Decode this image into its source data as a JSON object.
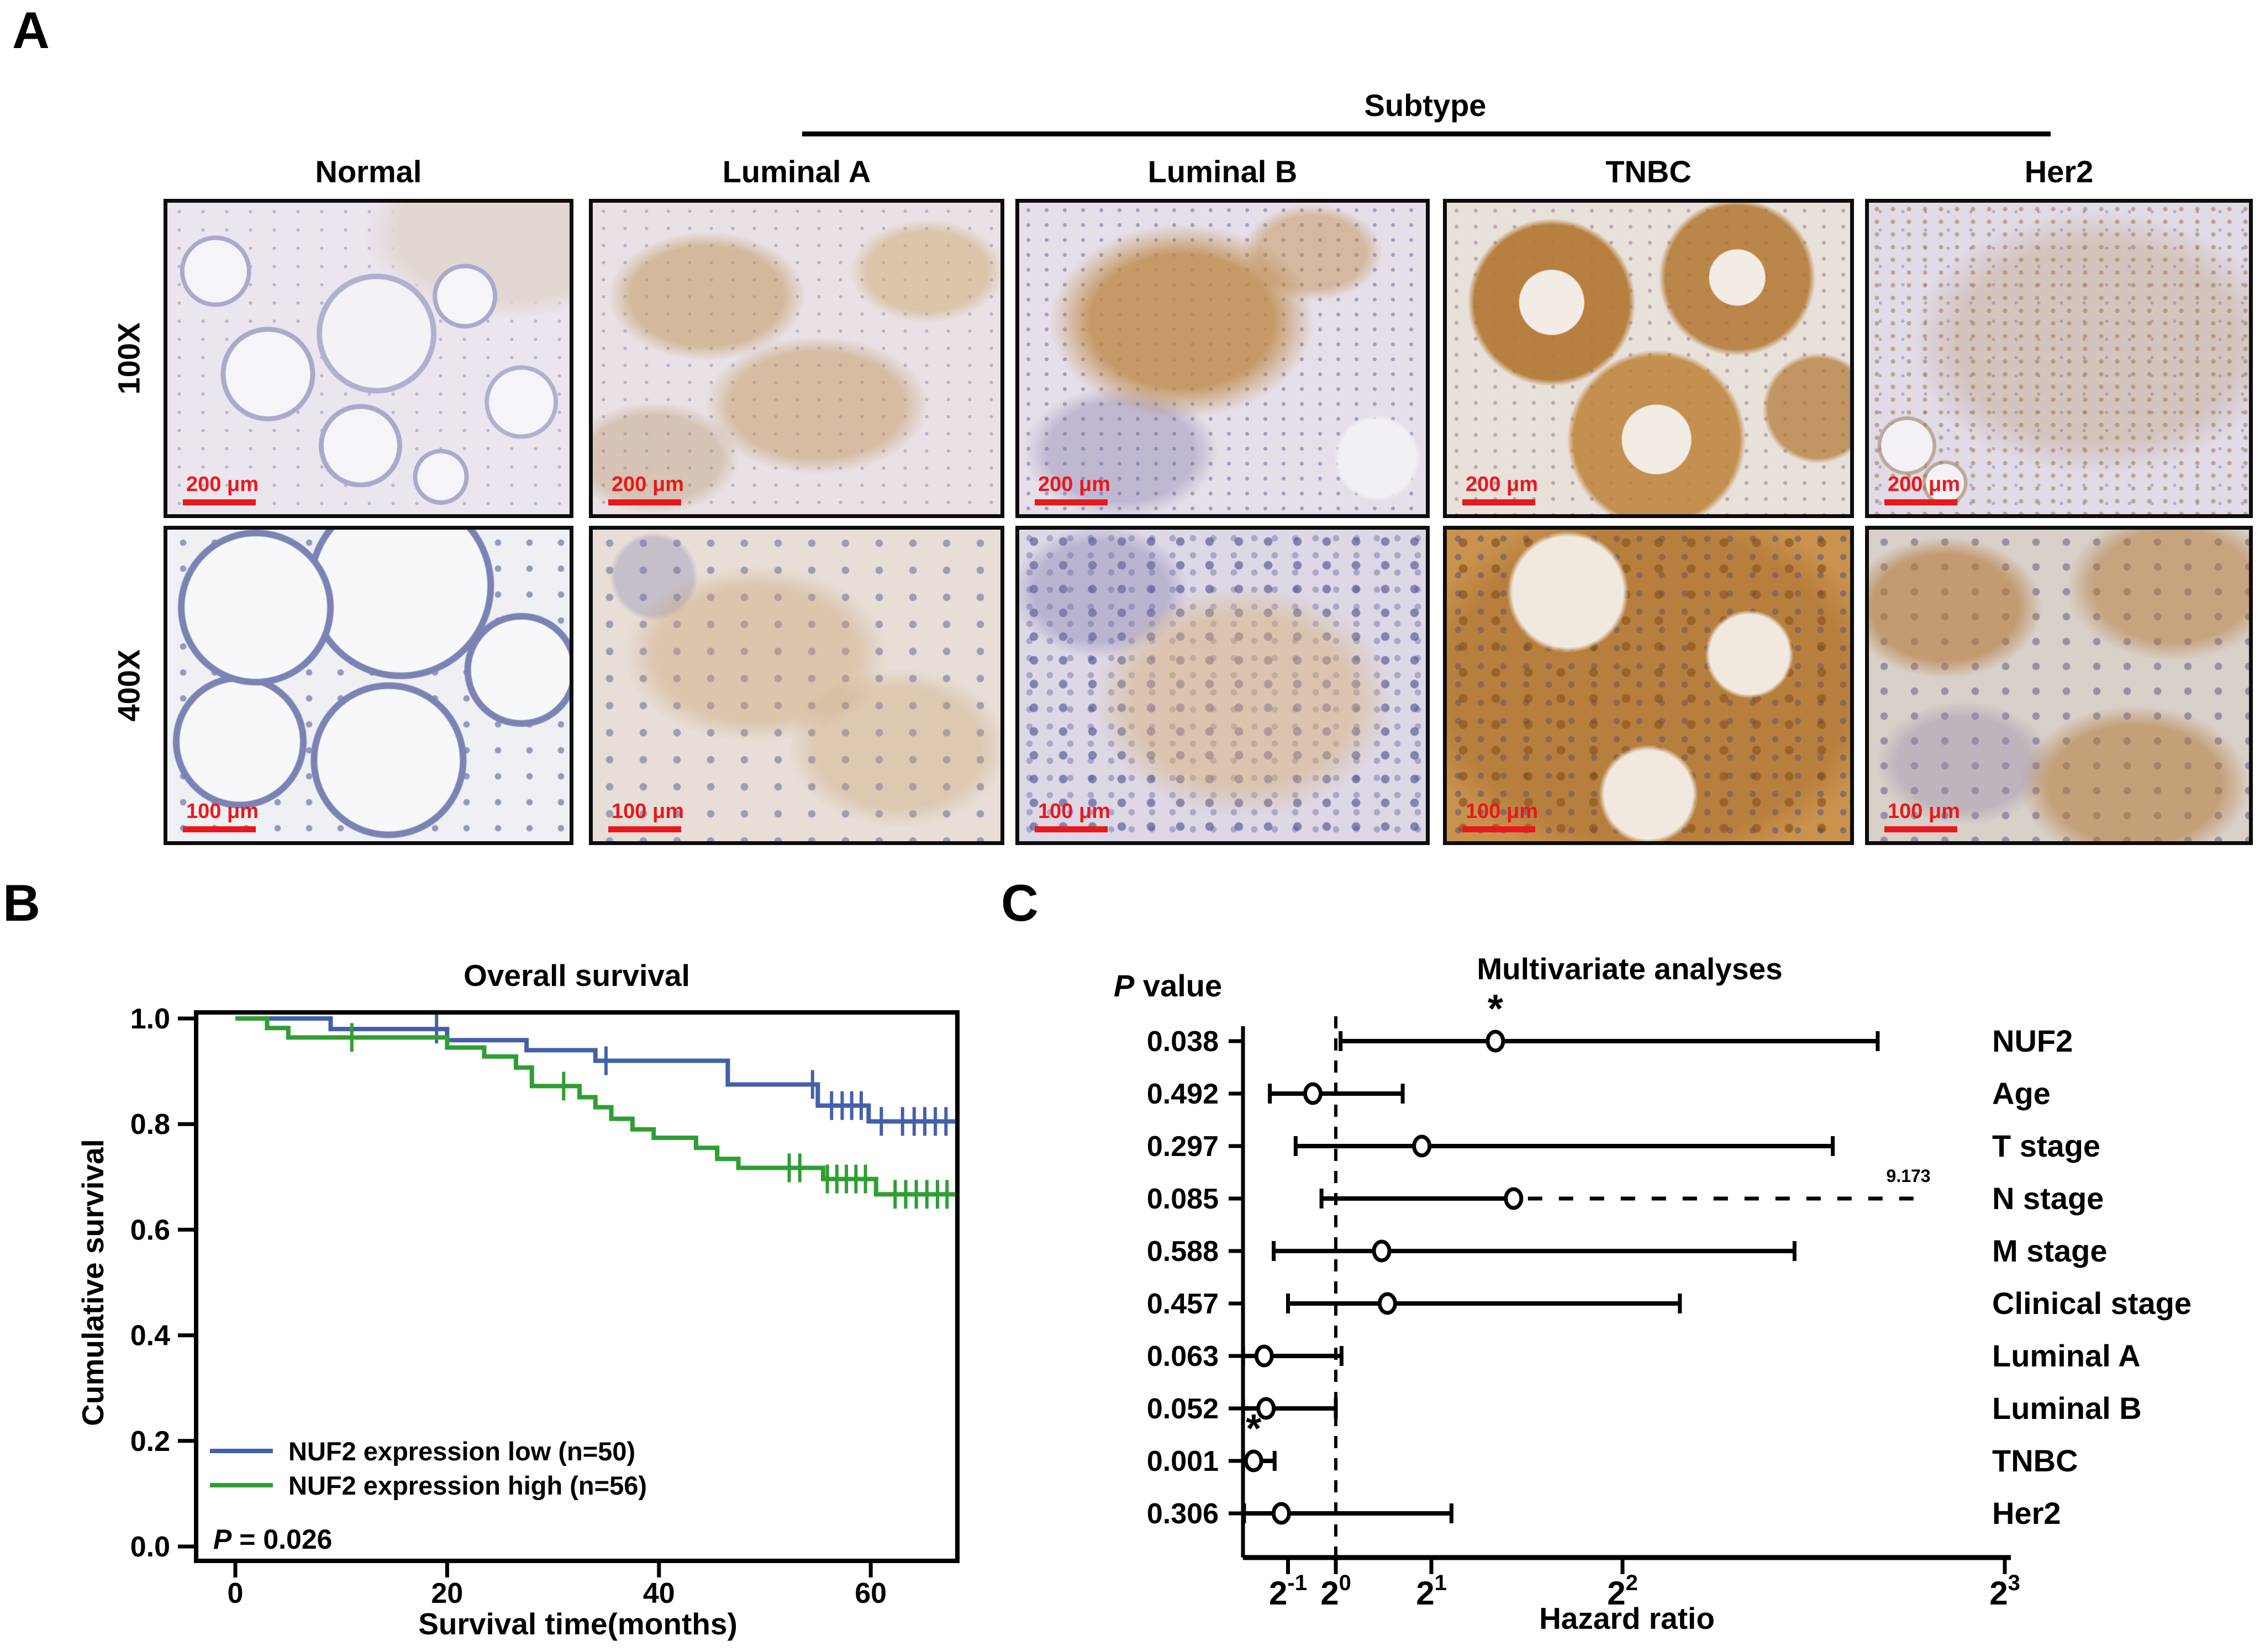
{
  "colors": {
    "km_low_blue": "#4560aa",
    "km_high_green": "#2f9e33",
    "scalebar_red": "#e8191c",
    "ink": "#000000"
  },
  "panelA": {
    "label": "A",
    "subtype_header": "Subtype",
    "columns": [
      "Normal",
      "Luminal A",
      "Luminal B",
      "TNBC",
      "Her2"
    ],
    "rows": [
      "100X",
      "400X"
    ],
    "scalebar_row1": "200 μm",
    "scalebar_row2": "100 μm"
  },
  "panelB": {
    "label": "B",
    "title": "Overall survival",
    "xlabel": "Survival time(months)",
    "ylabel": "Cumulative survival",
    "p_italic": "P",
    "p_rest": " = 0.026"
  },
  "panelC": {
    "label": "C",
    "title": "Multivariate analyses",
    "pvalue_italic": "P",
    "pvalue_rest": " value",
    "xlabel": "Hazard ratio"
  },
  "chart_data": [
    {
      "type": "line",
      "subtype": "kaplan-meier-step",
      "title": "Overall survival",
      "xlabel": "Survival time(months)",
      "ylabel": "Cumulative survival",
      "xlim": [
        -4,
        68.2
      ],
      "ylim": [
        0.0,
        1.04
      ],
      "xticks": [
        0,
        20,
        40,
        60
      ],
      "yticks": [
        0.0,
        0.2,
        0.4,
        0.6,
        0.8,
        1.0
      ],
      "grid": false,
      "legend_position": "lower-left inside plot",
      "p_value": "0.026",
      "series": [
        {
          "name": "NUF2 expression low (n=50)",
          "color": "#4560aa",
          "steps": [
            [
              0,
              1.0
            ],
            [
              9,
              0.98
            ],
            [
              20,
              0.959
            ],
            [
              27.5,
              0.94
            ],
            [
              34,
              0.92
            ],
            [
              46.5,
              0.875
            ],
            [
              55,
              0.835
            ],
            [
              59.8,
              0.805
            ],
            [
              68,
              0.805
            ]
          ],
          "censors": [
            [
              19,
              0.98
            ],
            [
              35,
              0.92
            ],
            [
              54.5,
              0.875
            ],
            [
              56.3,
              0.835
            ],
            [
              57.3,
              0.835
            ],
            [
              58.2,
              0.835
            ],
            [
              59.1,
              0.835
            ],
            [
              61,
              0.805
            ],
            [
              63,
              0.805
            ],
            [
              64.1,
              0.805
            ],
            [
              65.1,
              0.805
            ],
            [
              66.1,
              0.805
            ],
            [
              67.1,
              0.805
            ]
          ]
        },
        {
          "name": "NUF2 expression high (n=56)",
          "color": "#2f9e33",
          "steps": [
            [
              0,
              1.0
            ],
            [
              3,
              0.982
            ],
            [
              5,
              0.964
            ],
            [
              20,
              0.945
            ],
            [
              23.5,
              0.928
            ],
            [
              26.5,
              0.907
            ],
            [
              28,
              0.872
            ],
            [
              32.5,
              0.851
            ],
            [
              34,
              0.832
            ],
            [
              35.5,
              0.81
            ],
            [
              37.5,
              0.79
            ],
            [
              39.5,
              0.774
            ],
            [
              43.5,
              0.755
            ],
            [
              45.5,
              0.734
            ],
            [
              47.5,
              0.717
            ],
            [
              55.5,
              0.696
            ],
            [
              60.5,
              0.667
            ],
            [
              68,
              0.667
            ]
          ],
          "censors": [
            [
              11,
              0.964
            ],
            [
              31,
              0.872
            ],
            [
              52.3,
              0.717
            ],
            [
              53.3,
              0.717
            ],
            [
              55.9,
              0.696
            ],
            [
              56.8,
              0.696
            ],
            [
              57.7,
              0.696
            ],
            [
              58.6,
              0.696
            ],
            [
              59.5,
              0.696
            ],
            [
              62.3,
              0.667
            ],
            [
              63.3,
              0.667
            ],
            [
              64.3,
              0.667
            ],
            [
              65.3,
              0.667
            ],
            [
              66.3,
              0.667
            ],
            [
              67.2,
              0.667
            ]
          ]
        }
      ]
    },
    {
      "type": "forest",
      "title": "Multivariate analyses",
      "xlabel": "Hazard ratio",
      "x_scale": "linear in hazard ratio, ticks labeled as powers of 2",
      "xlim": [
        0.03,
        8.2
      ],
      "reference_line": 1,
      "xticks": [
        {
          "value": 0.5,
          "base": "2",
          "exp": "-1"
        },
        {
          "value": 1,
          "base": "2",
          "exp": "0"
        },
        {
          "value": 2,
          "base": "2",
          "exp": "1"
        },
        {
          "value": 4,
          "base": "2",
          "exp": "2"
        },
        {
          "value": 8,
          "base": "2",
          "exp": "3"
        }
      ],
      "rows": [
        {
          "label": "NUF2",
          "p": "0.038",
          "low": 1.05,
          "hr": 2.67,
          "high": 6.67,
          "sig": "*"
        },
        {
          "label": "Age",
          "p": "0.492",
          "low": 0.31,
          "hr": 0.76,
          "high": 1.7,
          "sig": ""
        },
        {
          "label": "T stage",
          "p": "0.297",
          "low": 0.58,
          "hr": 1.9,
          "high": 6.2,
          "sig": ""
        },
        {
          "label": "N stage",
          "p": "0.085",
          "low": 0.85,
          "hr": 2.86,
          "high": 9.173,
          "high_dashed": true,
          "high_drawn": 7.2,
          "high_label": "9.173",
          "sig": ""
        },
        {
          "label": "M stage",
          "p": "0.588",
          "low": 0.35,
          "hr": 1.48,
          "high": 5.8,
          "sig": ""
        },
        {
          "label": "Clinical stage",
          "p": "0.457",
          "low": 0.5,
          "hr": 1.54,
          "high": 4.6,
          "sig": ""
        },
        {
          "label": "Luminal A",
          "p": "0.063",
          "low": 0.03,
          "hr": 0.25,
          "high": 1.06,
          "sig": ""
        },
        {
          "label": "Luminal B",
          "p": "0.052",
          "low": 0.03,
          "hr": 0.27,
          "high": 1.0,
          "sig": ""
        },
        {
          "label": "TNBC",
          "p": "0.001",
          "low": 0.03,
          "hr": 0.14,
          "high": 0.36,
          "sig": "*"
        },
        {
          "label": "Her2",
          "p": "0.306",
          "low": 0.04,
          "hr": 0.43,
          "high": 2.21,
          "sig": ""
        }
      ]
    }
  ]
}
